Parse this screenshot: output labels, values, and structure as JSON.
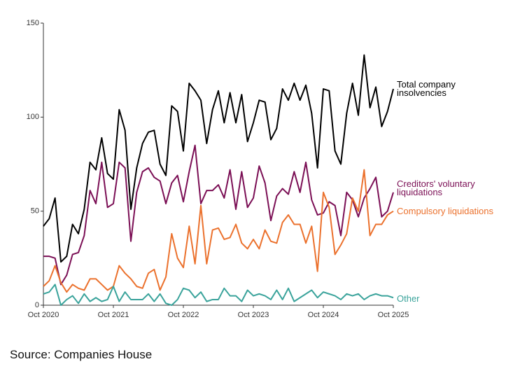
{
  "chart_data": {
    "type": "line",
    "categories": [
      "Oct 2020",
      null,
      null,
      null,
      null,
      null,
      null,
      null,
      null,
      null,
      null,
      null,
      "Oct 2021",
      null,
      null,
      null,
      null,
      null,
      null,
      null,
      null,
      null,
      null,
      null,
      "Oct 2022",
      null,
      null,
      null,
      null,
      null,
      null,
      null,
      null,
      null,
      null,
      null,
      "Oct 2023",
      null,
      null,
      null,
      null,
      null,
      null,
      null,
      null,
      null,
      null,
      null,
      "Oct 2024",
      null,
      null,
      null,
      null,
      null,
      null,
      null,
      null,
      null,
      null,
      null,
      "Oct 2025"
    ],
    "ylim": [
      0,
      150
    ],
    "yticks": [
      0,
      50,
      100,
      150
    ],
    "series": [
      {
        "name": "Total company insolvencies",
        "color": "#000000",
        "values": [
          42,
          46,
          57,
          23,
          26,
          43,
          38,
          51,
          76,
          72,
          89,
          70,
          67,
          104,
          93,
          51,
          73,
          86,
          92,
          93,
          75,
          69,
          106,
          103,
          82,
          118,
          114,
          109,
          86,
          104,
          114,
          97,
          113,
          97,
          112,
          87,
          97,
          109,
          108,
          88,
          94,
          115,
          109,
          118,
          109,
          117,
          102,
          73,
          115,
          114,
          82,
          75,
          102,
          118,
          101,
          133,
          105,
          116,
          95,
          103,
          115
        ]
      },
      {
        "name": "Creditors' voluntary liquidations",
        "color": "#7b0f55",
        "values": [
          26,
          26,
          25,
          11,
          16,
          27,
          28,
          37,
          61,
          54,
          76,
          52,
          54,
          76,
          73,
          34,
          60,
          71,
          73,
          68,
          66,
          54,
          65,
          69,
          55,
          71,
          85,
          54,
          61,
          61,
          64,
          57,
          72,
          51,
          71,
          52,
          57,
          74,
          65,
          45,
          58,
          62,
          59,
          71,
          60,
          76,
          56,
          48,
          49,
          55,
          53,
          37,
          60,
          56,
          47,
          57,
          62,
          68,
          47,
          50,
          60
        ]
      },
      {
        "name": "Compulsory liquidations",
        "color": "#eb712d",
        "values": [
          10,
          13,
          21,
          12,
          7,
          11,
          9,
          8,
          14,
          14,
          11,
          8,
          10,
          21,
          17,
          14,
          10,
          9,
          17,
          19,
          8,
          15,
          38,
          25,
          20,
          42,
          22,
          53,
          22,
          40,
          41,
          35,
          36,
          43,
          33,
          30,
          35,
          30,
          40,
          34,
          33,
          44,
          48,
          43,
          43,
          33,
          42,
          18,
          60,
          52,
          27,
          32,
          38,
          57,
          50,
          72,
          37,
          43,
          43,
          48,
          50
        ]
      },
      {
        "name": "Other",
        "color": "#3aa39b",
        "values": [
          6,
          7,
          11,
          0,
          3,
          5,
          1,
          6,
          2,
          4,
          2,
          3,
          10,
          2,
          7,
          3,
          3,
          3,
          6,
          2,
          6,
          1,
          0,
          3,
          9,
          8,
          4,
          7,
          2,
          3,
          3,
          9,
          5,
          5,
          2,
          8,
          5,
          6,
          5,
          3,
          8,
          3,
          9,
          2,
          4,
          6,
          8,
          4,
          7,
          6,
          5,
          3,
          6,
          5,
          6,
          3,
          5,
          6,
          5,
          5,
          4
        ]
      }
    ],
    "source": "Source: Companies House"
  }
}
